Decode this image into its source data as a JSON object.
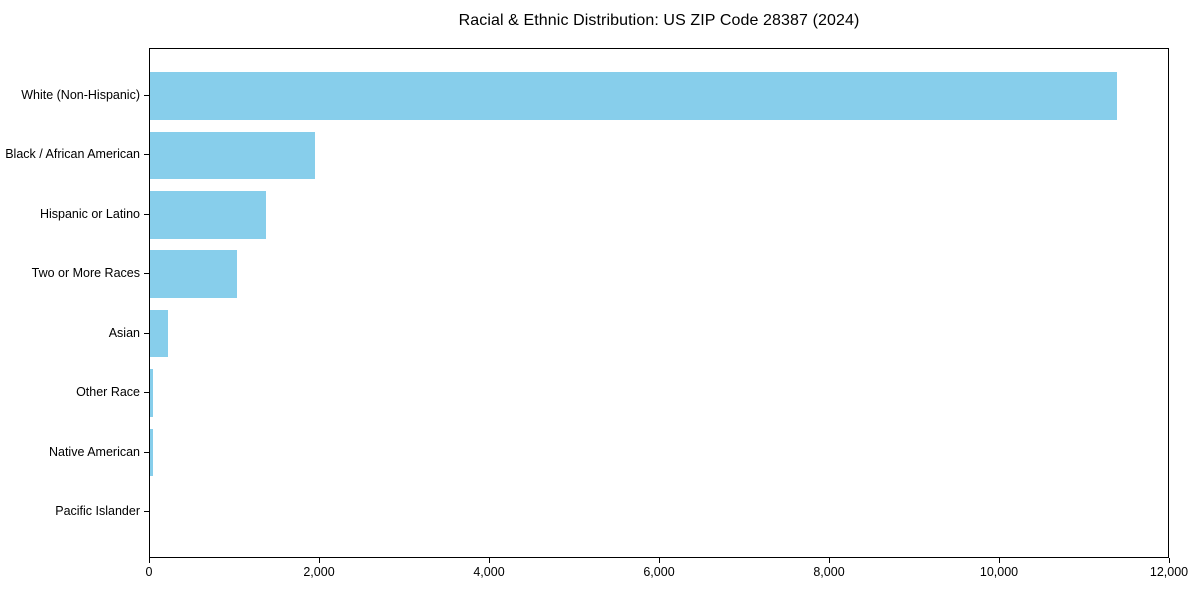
{
  "chart_data": {
    "type": "bar",
    "orientation": "horizontal",
    "title": "Racial & Ethnic Distribution: US ZIP Code 28387 (2024)",
    "categories": [
      "White (Non-Hispanic)",
      "Black / African American",
      "Hispanic or Latino",
      "Two or More Races",
      "Asian",
      "Other Race",
      "Native American",
      "Pacific Islander"
    ],
    "values": [
      11400,
      1940,
      1370,
      1020,
      210,
      35,
      30,
      0
    ],
    "xlabel": "",
    "ylabel": "",
    "xlim": [
      0,
      12000
    ],
    "xtick_values": [
      0,
      2000,
      4000,
      6000,
      8000,
      10000,
      12000
    ],
    "xtick_labels": [
      "0",
      "2,000",
      "4,000",
      "6,000",
      "8,000",
      "10,000",
      "12,000"
    ],
    "bar_color": "#87CEEB",
    "frame_color": "#000000",
    "background": "#ffffff",
    "grid": false,
    "legend": null
  }
}
